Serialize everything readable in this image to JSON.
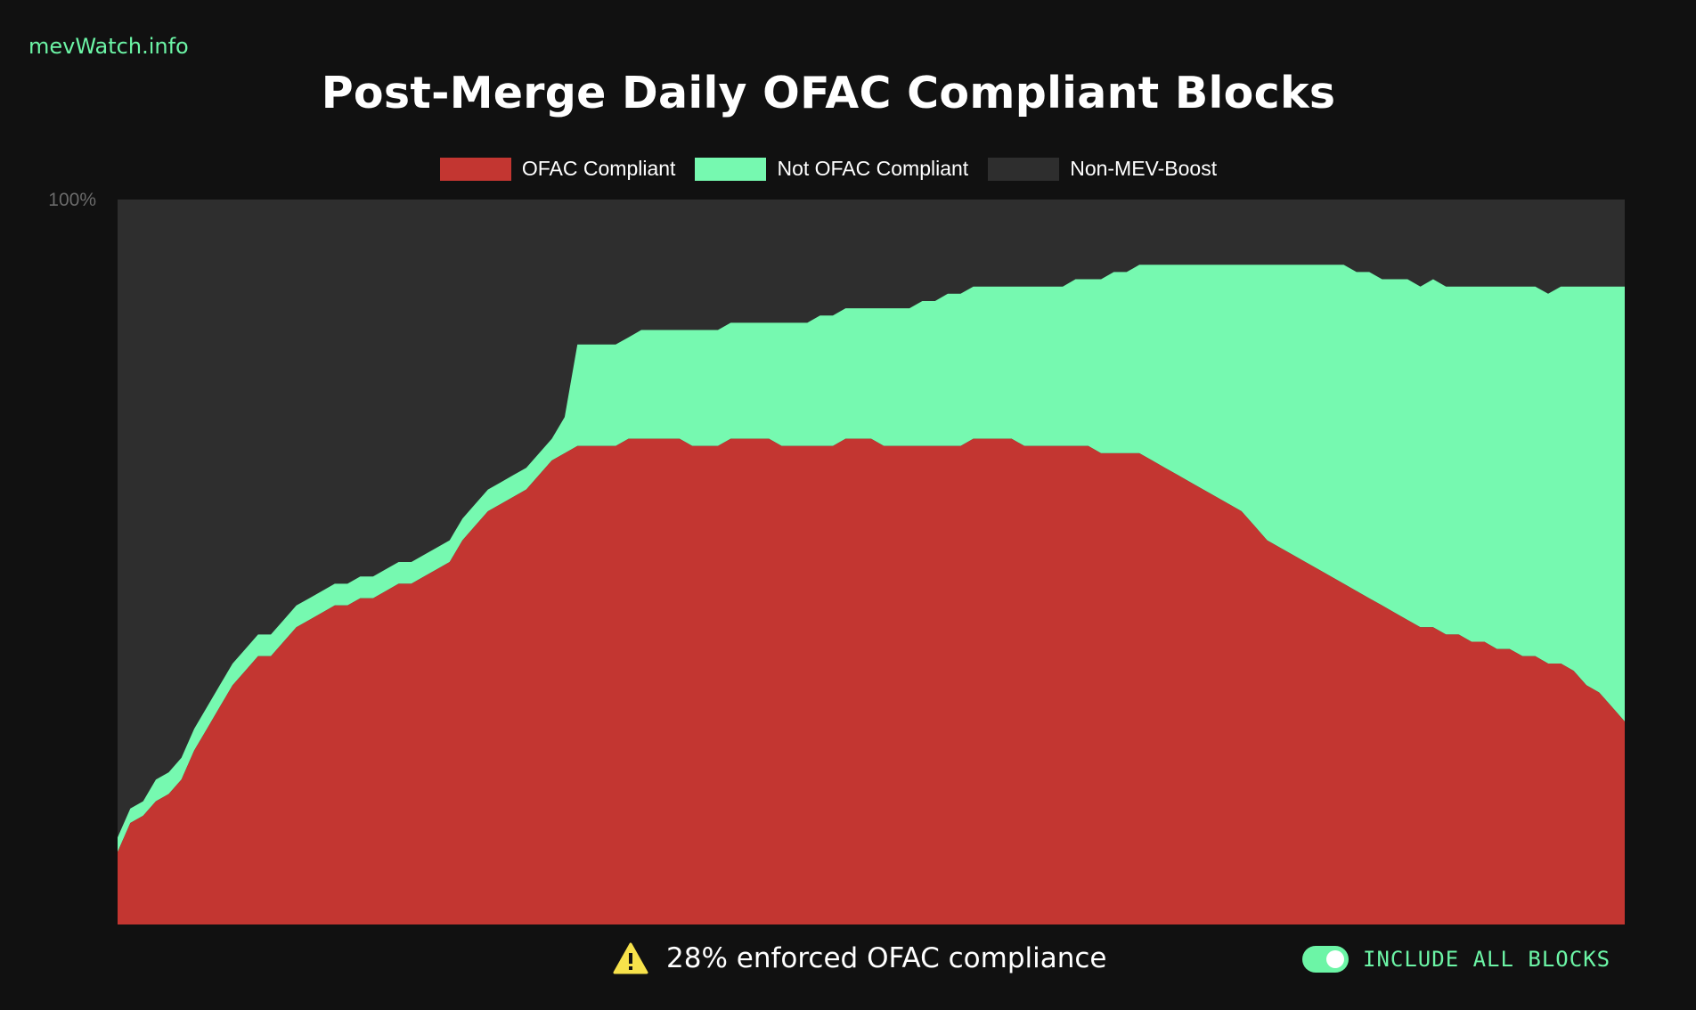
{
  "brand": "mevWatch.info",
  "title": "Post-Merge Daily OFAC Compliant Blocks",
  "legend": [
    {
      "label": "OFAC Compliant",
      "color": "#c33631"
    },
    {
      "label": "Not OFAC Compliant",
      "color": "#76f9b0"
    },
    {
      "label": "Non-MEV-Boost",
      "color": "#2e2e2e"
    }
  ],
  "warning": {
    "icon": "warning-icon",
    "text": "28% enforced OFAC compliance"
  },
  "toggle": {
    "label": "INCLUDE ALL BLOCKS",
    "on": true
  },
  "colors": {
    "background": "#111111",
    "compliant": "#c33631",
    "not_compliant": "#76f9b0",
    "non_mev_boost": "#2e2e2e",
    "accent": "#6cf5a6"
  },
  "chart_data": {
    "type": "area",
    "stacked": true,
    "ylim": [
      0,
      100
    ],
    "y_tick_labels": [
      "100%"
    ],
    "grid": false,
    "legend_position": "top-center",
    "series": [
      {
        "name": "OFAC Compliant",
        "values": [
          10,
          14,
          15,
          17,
          18,
          20,
          24,
          27,
          30,
          33,
          35,
          37,
          37,
          39,
          41,
          42,
          43,
          44,
          44,
          45,
          45,
          46,
          47,
          47,
          48,
          49,
          50,
          53,
          55,
          57,
          58,
          59,
          60,
          62,
          64,
          65,
          66,
          66,
          66,
          66,
          67,
          67,
          67,
          67,
          67,
          66,
          66,
          66,
          67,
          67,
          67,
          67,
          66,
          66,
          66,
          66,
          66,
          67,
          67,
          67,
          66,
          66,
          66,
          66,
          66,
          66,
          66,
          67,
          67,
          67,
          67,
          66,
          66,
          66,
          66,
          66,
          66,
          65,
          65,
          65,
          65,
          64,
          63,
          62,
          61,
          60,
          59,
          58,
          57,
          55,
          53,
          52,
          51,
          50,
          49,
          48,
          47,
          46,
          45,
          44,
          43,
          42,
          41,
          41,
          40,
          40,
          39,
          39,
          38,
          38,
          37,
          37,
          36,
          36,
          35,
          33,
          32,
          30,
          28
        ]
      },
      {
        "name": "Not OFAC Compliant",
        "values": [
          2,
          2,
          2,
          3,
          3,
          3,
          3,
          3,
          3,
          3,
          3,
          3,
          3,
          3,
          3,
          3,
          3,
          3,
          3,
          3,
          3,
          3,
          3,
          3,
          3,
          3,
          3,
          3,
          3,
          3,
          3,
          3,
          3,
          3,
          3,
          5,
          14,
          14,
          14,
          14,
          14,
          15,
          15,
          15,
          15,
          16,
          16,
          16,
          16,
          16,
          16,
          16,
          17,
          17,
          17,
          18,
          18,
          18,
          18,
          18,
          19,
          19,
          19,
          20,
          20,
          21,
          21,
          21,
          21,
          21,
          21,
          22,
          22,
          22,
          22,
          23,
          23,
          24,
          25,
          25,
          26,
          27,
          28,
          29,
          30,
          31,
          32,
          33,
          34,
          36,
          38,
          39,
          40,
          41,
          42,
          43,
          44,
          44,
          45,
          45,
          46,
          47,
          47,
          48,
          48,
          48,
          49,
          49,
          50,
          50,
          51,
          51,
          51,
          52,
          53,
          55,
          56,
          58,
          60
        ]
      },
      {
        "name": "Non-MEV-Boost",
        "values": [
          88,
          84,
          83,
          80,
          79,
          77,
          73,
          70,
          67,
          64,
          62,
          60,
          60,
          58,
          56,
          55,
          54,
          53,
          53,
          52,
          52,
          51,
          50,
          50,
          49,
          48,
          47,
          44,
          42,
          40,
          39,
          38,
          37,
          35,
          33,
          30,
          20,
          20,
          20,
          20,
          19,
          18,
          18,
          18,
          18,
          18,
          18,
          18,
          17,
          17,
          17,
          17,
          17,
          17,
          17,
          16,
          16,
          15,
          15,
          15,
          15,
          15,
          15,
          14,
          14,
          13,
          13,
          12,
          12,
          12,
          12,
          12,
          12,
          12,
          12,
          11,
          11,
          11,
          10,
          10,
          9,
          9,
          9,
          9,
          9,
          9,
          9,
          9,
          9,
          9,
          9,
          9,
          9,
          9,
          9,
          9,
          9,
          10,
          10,
          11,
          11,
          11,
          12,
          11,
          12,
          12,
          12,
          12,
          12,
          12,
          12,
          12,
          13,
          12,
          12,
          12,
          12,
          12,
          12
        ]
      }
    ]
  }
}
